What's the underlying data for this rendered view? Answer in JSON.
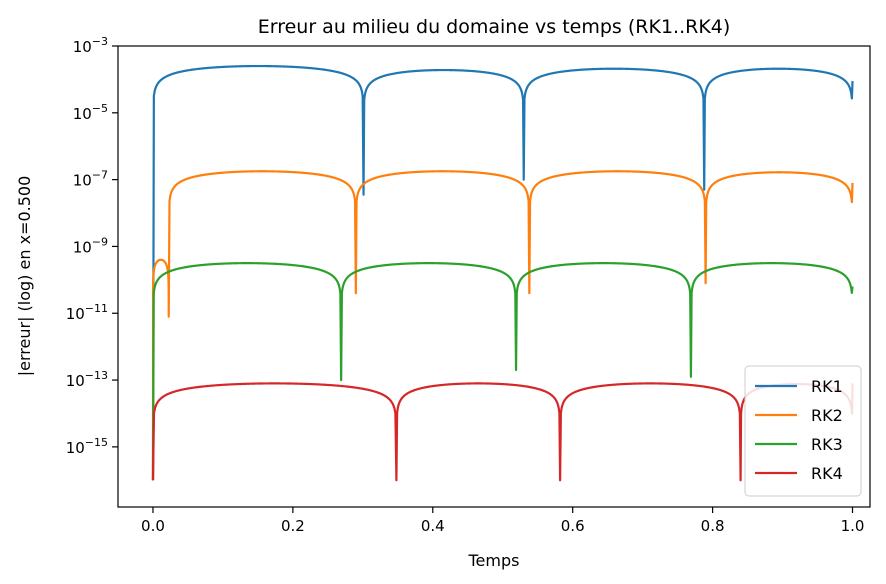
{
  "chart_data": {
    "type": "line",
    "title": "Erreur au milieu du domaine vs temps (RK1..RK4)",
    "xlabel": "Temps",
    "ylabel": "|erreur| (log) en x=0.500",
    "xlim": [
      -0.05,
      1.025
    ],
    "ylim_log10": [
      -16.8,
      -3
    ],
    "y_scale": "log",
    "grid": false,
    "legend_position": "lower-right",
    "x_ticks": [
      {
        "value": 0.0,
        "label": "0.0"
      },
      {
        "value": 0.2,
        "label": "0.2"
      },
      {
        "value": 0.4,
        "label": "0.4"
      },
      {
        "value": 0.6,
        "label": "0.6"
      },
      {
        "value": 0.8,
        "label": "0.8"
      },
      {
        "value": 1.0,
        "label": "1.0"
      }
    ],
    "y_ticks": [
      {
        "exp": -3,
        "base": "10",
        "sup": "−3"
      },
      {
        "exp": -5,
        "base": "10",
        "sup": "−5"
      },
      {
        "exp": -7,
        "base": "10",
        "sup": "−7"
      },
      {
        "exp": -9,
        "base": "10",
        "sup": "−9"
      },
      {
        "exp": -11,
        "base": "10",
        "sup": "−11"
      },
      {
        "exp": -13,
        "base": "10",
        "sup": "−13"
      },
      {
        "exp": -15,
        "base": "10",
        "sup": "−15"
      }
    ],
    "series": [
      {
        "name": "RK1",
        "color": "#1f77b4",
        "min_log10": -16.8,
        "segments": [
          {
            "start": 0.0,
            "end": 0.301,
            "amp_log10": -3.6,
            "exponent": 0.5,
            "start_log10": -16.0,
            "end_log10": -7.45
          },
          {
            "start": 0.301,
            "end": 0.53,
            "amp_log10": -3.72,
            "exponent": 0.5,
            "start_log10": -7.45,
            "end_log10": -7.0
          },
          {
            "start": 0.53,
            "end": 0.788,
            "amp_log10": -3.68,
            "exponent": 0.5,
            "start_log10": -7.0,
            "end_log10": -7.3
          },
          {
            "start": 0.788,
            "end": 1.0,
            "amp_log10": -3.68,
            "exponent": 0.5,
            "start_log10": -7.3,
            "end_log10": -4.05
          }
        ]
      },
      {
        "name": "RK2",
        "color": "#ff7f0e",
        "min_log10": -16.8,
        "segments": [
          {
            "start": 0.0,
            "end": 0.0225,
            "amp_log10": -9.4,
            "exponent": 0.5,
            "start_log10": -16.0,
            "end_log10": -11.1
          },
          {
            "start": 0.0225,
            "end": 0.29,
            "amp_log10": -6.75,
            "exponent": 0.5,
            "start_log10": -11.1,
            "end_log10": -10.4
          },
          {
            "start": 0.29,
            "end": 0.538,
            "amp_log10": -6.75,
            "exponent": 0.5,
            "start_log10": -10.4,
            "end_log10": -10.4
          },
          {
            "start": 0.538,
            "end": 0.79,
            "amp_log10": -6.75,
            "exponent": 0.5,
            "start_log10": -10.4,
            "end_log10": -10.1
          },
          {
            "start": 0.79,
            "end": 1.0,
            "amp_log10": -6.78,
            "exponent": 0.5,
            "start_log10": -10.1,
            "end_log10": -7.1
          }
        ]
      },
      {
        "name": "RK3",
        "color": "#2ca02c",
        "min_log10": -16.8,
        "segments": [
          {
            "start": 0.0,
            "end": 0.269,
            "amp_log10": -9.5,
            "exponent": 0.5,
            "start_log10": -16.0,
            "end_log10": -13.0
          },
          {
            "start": 0.269,
            "end": 0.519,
            "amp_log10": -9.5,
            "exponent": 0.5,
            "start_log10": -13.0,
            "end_log10": -12.7
          },
          {
            "start": 0.519,
            "end": 0.769,
            "amp_log10": -9.5,
            "exponent": 0.5,
            "start_log10": -12.7,
            "end_log10": -12.9
          },
          {
            "start": 0.769,
            "end": 1.0,
            "amp_log10": -9.5,
            "exponent": 0.5,
            "start_log10": -12.9,
            "end_log10": -10.2
          }
        ]
      },
      {
        "name": "RK4",
        "color": "#d62728",
        "min_log10": -16.8,
        "segments": [
          {
            "start": 0.0,
            "end": 0.348,
            "amp_log10": -13.1,
            "exponent": 0.5,
            "start_log10": -16.0,
            "end_log10": -16.0
          },
          {
            "start": 0.348,
            "end": 0.582,
            "amp_log10": -13.1,
            "exponent": 0.5,
            "start_log10": -16.0,
            "end_log10": -16.0
          },
          {
            "start": 0.582,
            "end": 0.84,
            "amp_log10": -13.1,
            "exponent": 0.5,
            "start_log10": -16.0,
            "end_log10": -16.0
          },
          {
            "start": 0.84,
            "end": 1.0,
            "amp_log10": -13.12,
            "exponent": 0.5,
            "start_log10": -16.0,
            "end_log10": -13.1
          }
        ]
      }
    ]
  }
}
